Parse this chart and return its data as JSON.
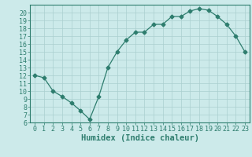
{
  "x": [
    0,
    1,
    2,
    3,
    4,
    5,
    6,
    7,
    8,
    9,
    10,
    11,
    12,
    13,
    14,
    15,
    16,
    17,
    18,
    19,
    20,
    21,
    22,
    23
  ],
  "y": [
    12,
    11.7,
    10,
    9.3,
    8.5,
    7.5,
    6.4,
    9.3,
    13,
    15,
    16.5,
    17.5,
    17.5,
    18.5,
    18.5,
    19.5,
    19.5,
    20.2,
    20.5,
    20.3,
    19.5,
    18.5,
    17,
    15
  ],
  "line_color": "#2e7d6e",
  "marker": "D",
  "marker_size": 2.5,
  "bg_color": "#cceaea",
  "grid_color": "#aacfcf",
  "xlabel": "Humidex (Indice chaleur)",
  "ylim": [
    6,
    21
  ],
  "xlim": [
    -0.5,
    23.5
  ],
  "yticks": [
    6,
    7,
    8,
    9,
    10,
    11,
    12,
    13,
    14,
    15,
    16,
    17,
    18,
    19,
    20
  ],
  "xticks": [
    0,
    1,
    2,
    3,
    4,
    5,
    6,
    7,
    8,
    9,
    10,
    11,
    12,
    13,
    14,
    15,
    16,
    17,
    18,
    19,
    20,
    21,
    22,
    23
  ],
  "tick_label_fontsize": 6,
  "xlabel_fontsize": 7.5,
  "xlabel_fontweight": "bold"
}
